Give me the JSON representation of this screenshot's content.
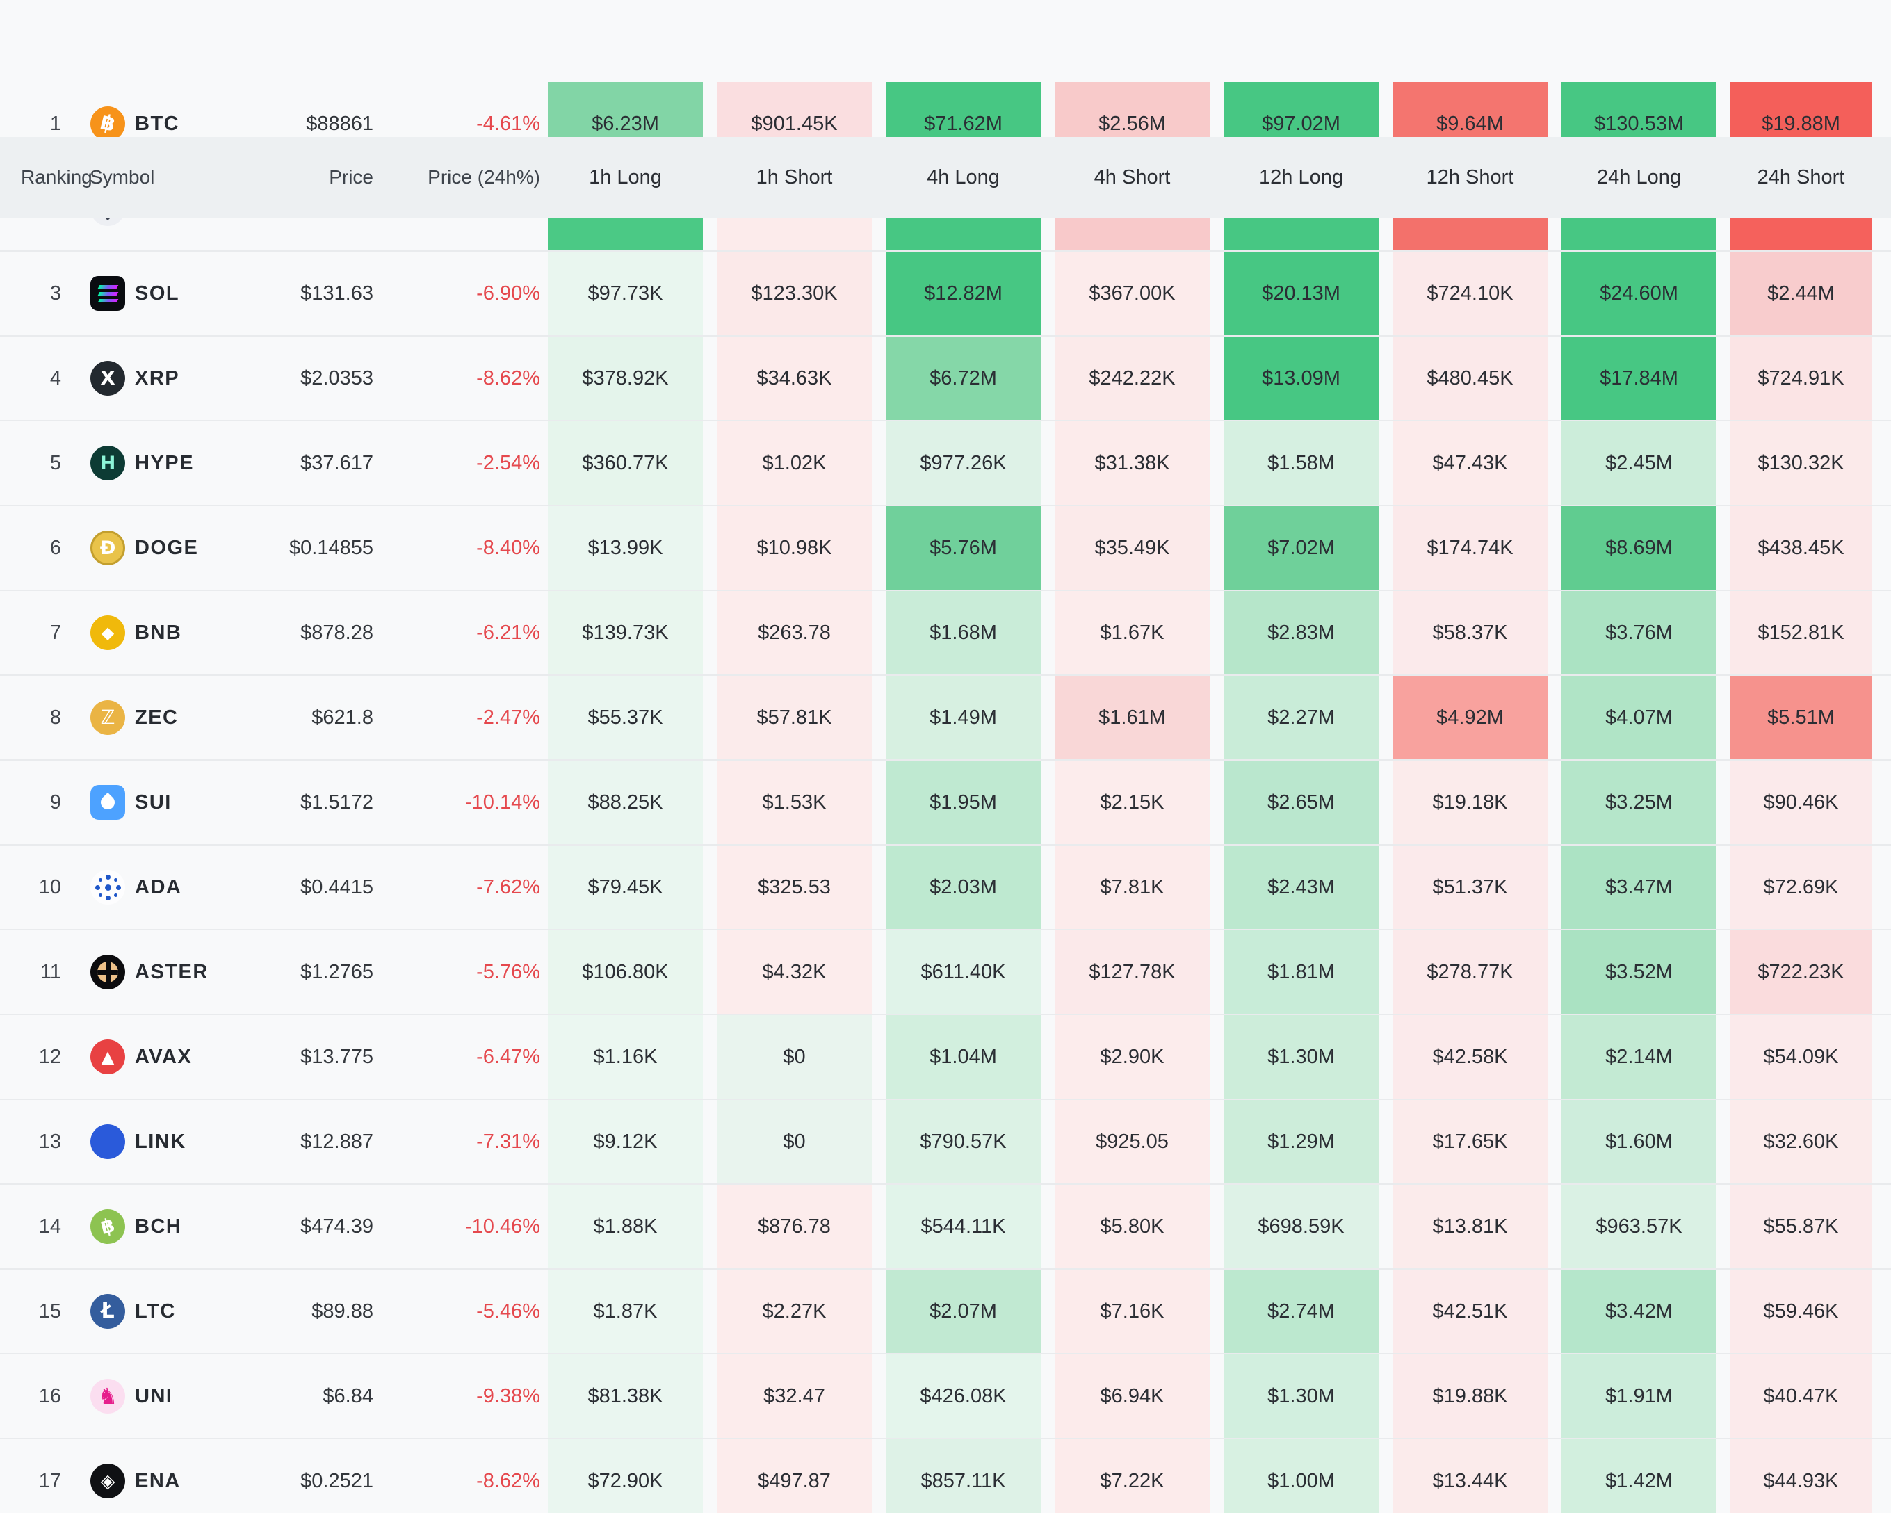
{
  "theme": {
    "page_bg": "#f8f9fa",
    "header_bg": "#edf0f2",
    "row_divider": "#e9ebed",
    "negative_text": "#e5484d",
    "strong_green": "#47c783",
    "strong_red": "#f45f5a"
  },
  "header": {
    "columns": [
      "Ranking",
      "Symbol",
      "Price",
      "Price (24h%)",
      "1h Long",
      "1h Short",
      "4h Long",
      "4h Short",
      "12h Long",
      "12h Short",
      "24h Long",
      "24h Short"
    ]
  },
  "rows": [
    {
      "ranking": "1",
      "symbol": "BTC",
      "icon": "btc",
      "price": "$88861",
      "change": "-4.61%",
      "cells": [
        {
          "text": "$6.23M",
          "bg": "#82d5a6"
        },
        {
          "text": "$901.45K",
          "bg": "#fadee0"
        },
        {
          "text": "$71.62M",
          "bg": "#47c783"
        },
        {
          "text": "$2.56M",
          "bg": "#f8caca"
        },
        {
          "text": "$97.02M",
          "bg": "#47c783"
        },
        {
          "text": "$9.64M",
          "bg": "#f4756f"
        },
        {
          "text": "$130.53M",
          "bg": "#47c783"
        },
        {
          "text": "$19.88M",
          "bg": "#f45f5a"
        }
      ]
    },
    {
      "ranking": "",
      "symbol": "",
      "icon": "eth",
      "price": "",
      "change": "",
      "cells": [
        {
          "text": "",
          "bg": "#4bc985"
        },
        {
          "text": "",
          "bg": "#fcebeb"
        },
        {
          "text": "",
          "bg": "#47c783"
        },
        {
          "text": "",
          "bg": "#f8c9ca"
        },
        {
          "text": "",
          "bg": "#47c783"
        },
        {
          "text": "",
          "bg": "#f3716b"
        },
        {
          "text": "",
          "bg": "#47c783"
        },
        {
          "text": "",
          "bg": "#f5615c"
        }
      ]
    },
    {
      "ranking": "3",
      "symbol": "SOL",
      "icon": "sol",
      "price": "$131.63",
      "change": "-6.90%",
      "cells": [
        {
          "text": "$97.73K",
          "bg": "#e9f6ef"
        },
        {
          "text": "$123.30K",
          "bg": "#fbe9e9"
        },
        {
          "text": "$12.82M",
          "bg": "#47c783"
        },
        {
          "text": "$367.00K",
          "bg": "#fcebeb"
        },
        {
          "text": "$20.13M",
          "bg": "#47c783"
        },
        {
          "text": "$724.10K",
          "bg": "#fbe9ea"
        },
        {
          "text": "$24.60M",
          "bg": "#47c783"
        },
        {
          "text": "$2.44M",
          "bg": "#f8cccd"
        }
      ]
    },
    {
      "ranking": "4",
      "symbol": "XRP",
      "icon": "xrp",
      "price": "$2.0353",
      "change": "-8.62%",
      "cells": [
        {
          "text": "$378.92K",
          "bg": "#e4f4eb"
        },
        {
          "text": "$34.63K",
          "bg": "#fcebeb"
        },
        {
          "text": "$6.72M",
          "bg": "#85d7a8"
        },
        {
          "text": "$242.22K",
          "bg": "#fbeaea"
        },
        {
          "text": "$13.09M",
          "bg": "#47c783"
        },
        {
          "text": "$480.45K",
          "bg": "#fbe9ea"
        },
        {
          "text": "$17.84M",
          "bg": "#47c783"
        },
        {
          "text": "$724.91K",
          "bg": "#fbe4e5"
        }
      ]
    },
    {
      "ranking": "5",
      "symbol": "HYPE",
      "icon": "hype",
      "price": "$37.617",
      "change": "-2.54%",
      "cells": [
        {
          "text": "$360.77K",
          "bg": "#e6f5ec"
        },
        {
          "text": "$1.02K",
          "bg": "#fcecec"
        },
        {
          "text": "$977.26K",
          "bg": "#def2e7"
        },
        {
          "text": "$31.38K",
          "bg": "#fcebeb"
        },
        {
          "text": "$1.58M",
          "bg": "#d6f0e1"
        },
        {
          "text": "$47.43K",
          "bg": "#fcebeb"
        },
        {
          "text": "$2.45M",
          "bg": "#ccedda"
        },
        {
          "text": "$130.32K",
          "bg": "#fbeaea"
        }
      ]
    },
    {
      "ranking": "6",
      "symbol": "DOGE",
      "icon": "doge",
      "price": "$0.14855",
      "change": "-8.40%",
      "cells": [
        {
          "text": "$13.99K",
          "bg": "#eaf6f0"
        },
        {
          "text": "$10.98K",
          "bg": "#fcebeb"
        },
        {
          "text": "$5.76M",
          "bg": "#70d09b"
        },
        {
          "text": "$35.49K",
          "bg": "#fbeaea"
        },
        {
          "text": "$7.02M",
          "bg": "#6fd09a"
        },
        {
          "text": "$174.74K",
          "bg": "#fbe9ea"
        },
        {
          "text": "$8.69M",
          "bg": "#60cc90"
        },
        {
          "text": "$438.45K",
          "bg": "#fbe8e9"
        }
      ]
    },
    {
      "ranking": "7",
      "symbol": "BNB",
      "icon": "bnb",
      "price": "$878.28",
      "change": "-6.21%",
      "cells": [
        {
          "text": "$139.73K",
          "bg": "#e9f6ee"
        },
        {
          "text": "$263.78",
          "bg": "#fcecec"
        },
        {
          "text": "$1.68M",
          "bg": "#c9ecd8"
        },
        {
          "text": "$1.67K",
          "bg": "#fcecec"
        },
        {
          "text": "$2.83M",
          "bg": "#b6e6ca"
        },
        {
          "text": "$58.37K",
          "bg": "#fbeaeb"
        },
        {
          "text": "$3.76M",
          "bg": "#abe3c3"
        },
        {
          "text": "$152.81K",
          "bg": "#fbe9ea"
        }
      ]
    },
    {
      "ranking": "8",
      "symbol": "ZEC",
      "icon": "zec",
      "price": "$621.8",
      "change": "-2.47%",
      "cells": [
        {
          "text": "$55.37K",
          "bg": "#eaf6f0"
        },
        {
          "text": "$57.81K",
          "bg": "#fbebeb"
        },
        {
          "text": "$1.49M",
          "bg": "#d7f0e1"
        },
        {
          "text": "$1.61M",
          "bg": "#f9d7d7"
        },
        {
          "text": "$2.27M",
          "bg": "#c9ecd8"
        },
        {
          "text": "$4.92M",
          "bg": "#f8a29e"
        },
        {
          "text": "$4.07M",
          "bg": "#b0e4c6"
        },
        {
          "text": "$5.51M",
          "bg": "#f6928d"
        }
      ]
    },
    {
      "ranking": "9",
      "symbol": "SUI",
      "icon": "sui",
      "price": "$1.5172",
      "change": "-10.14%",
      "cells": [
        {
          "text": "$88.25K",
          "bg": "#eaf6f0"
        },
        {
          "text": "$1.53K",
          "bg": "#fcecec"
        },
        {
          "text": "$1.95M",
          "bg": "#bfe9d1"
        },
        {
          "text": "$2.15K",
          "bg": "#fcecec"
        },
        {
          "text": "$2.65M",
          "bg": "#bae7ce"
        },
        {
          "text": "$19.18K",
          "bg": "#fbebeb"
        },
        {
          "text": "$3.25M",
          "bg": "#b5e6ca"
        },
        {
          "text": "$90.46K",
          "bg": "#fbeaeb"
        }
      ]
    },
    {
      "ranking": "10",
      "symbol": "ADA",
      "icon": "ada",
      "price": "$0.4415",
      "change": "-7.62%",
      "cells": [
        {
          "text": "$79.45K",
          "bg": "#eaf6f0"
        },
        {
          "text": "$325.53",
          "bg": "#fcecec"
        },
        {
          "text": "$2.03M",
          "bg": "#bee9d0"
        },
        {
          "text": "$7.81K",
          "bg": "#fcebeb"
        },
        {
          "text": "$2.43M",
          "bg": "#bce8cf"
        },
        {
          "text": "$51.37K",
          "bg": "#fbeaeb"
        },
        {
          "text": "$3.47M",
          "bg": "#ace3c4"
        },
        {
          "text": "$72.69K",
          "bg": "#fbeaeb"
        }
      ]
    },
    {
      "ranking": "11",
      "symbol": "ASTER",
      "icon": "aster",
      "price": "$1.2765",
      "change": "-5.76%",
      "cells": [
        {
          "text": "$106.80K",
          "bg": "#e9f6ee"
        },
        {
          "text": "$4.32K",
          "bg": "#fcecec"
        },
        {
          "text": "$611.40K",
          "bg": "#e0f3e9"
        },
        {
          "text": "$127.78K",
          "bg": "#fbe9ea"
        },
        {
          "text": "$1.81M",
          "bg": "#c8ecd8"
        },
        {
          "text": "$278.77K",
          "bg": "#fbe9ea"
        },
        {
          "text": "$3.52M",
          "bg": "#aae2c2"
        },
        {
          "text": "$722.23K",
          "bg": "#fadcdd"
        }
      ]
    },
    {
      "ranking": "12",
      "symbol": "AVAX",
      "icon": "avax",
      "price": "$13.775",
      "change": "-6.47%",
      "cells": [
        {
          "text": "$1.16K",
          "bg": "#ebf7f1"
        },
        {
          "text": "$0",
          "bg": "#e9f4ee"
        },
        {
          "text": "$1.04M",
          "bg": "#d2efde"
        },
        {
          "text": "$2.90K",
          "bg": "#fcecec"
        },
        {
          "text": "$1.30M",
          "bg": "#cdedda"
        },
        {
          "text": "$42.58K",
          "bg": "#fbeaeb"
        },
        {
          "text": "$2.14M",
          "bg": "#c3ead3"
        },
        {
          "text": "$54.09K",
          "bg": "#fbeaeb"
        }
      ]
    },
    {
      "ranking": "13",
      "symbol": "LINK",
      "icon": "link",
      "price": "$12.887",
      "change": "-7.31%",
      "cells": [
        {
          "text": "$9.12K",
          "bg": "#ebf7f1"
        },
        {
          "text": "$0",
          "bg": "#e9f4ee"
        },
        {
          "text": "$790.57K",
          "bg": "#dcf2e5"
        },
        {
          "text": "$925.05",
          "bg": "#fcecec"
        },
        {
          "text": "$1.29M",
          "bg": "#cdedda"
        },
        {
          "text": "$17.65K",
          "bg": "#fbebeb"
        },
        {
          "text": "$1.60M",
          "bg": "#ceeddc"
        },
        {
          "text": "$32.60K",
          "bg": "#fbebeb"
        }
      ]
    },
    {
      "ranking": "14",
      "symbol": "BCH",
      "icon": "bch",
      "price": "$474.39",
      "change": "-10.46%",
      "cells": [
        {
          "text": "$1.88K",
          "bg": "#ebf7f1"
        },
        {
          "text": "$876.78",
          "bg": "#fcecec"
        },
        {
          "text": "$544.11K",
          "bg": "#e1f4ea"
        },
        {
          "text": "$5.80K",
          "bg": "#fcecec"
        },
        {
          "text": "$698.59K",
          "bg": "#def2e7"
        },
        {
          "text": "$13.81K",
          "bg": "#fbebeb"
        },
        {
          "text": "$963.57K",
          "bg": "#daf1e4"
        },
        {
          "text": "$55.87K",
          "bg": "#fbeaeb"
        }
      ]
    },
    {
      "ranking": "15",
      "symbol": "LTC",
      "icon": "ltc",
      "price": "$89.88",
      "change": "-5.46%",
      "cells": [
        {
          "text": "$1.87K",
          "bg": "#ebf7f1"
        },
        {
          "text": "$2.27K",
          "bg": "#fcecec"
        },
        {
          "text": "$2.07M",
          "bg": "#c1e9d2"
        },
        {
          "text": "$7.16K",
          "bg": "#fcebeb"
        },
        {
          "text": "$2.74M",
          "bg": "#bce8cf"
        },
        {
          "text": "$42.51K",
          "bg": "#fbeaeb"
        },
        {
          "text": "$3.42M",
          "bg": "#b5e6cb"
        },
        {
          "text": "$59.46K",
          "bg": "#fbeaeb"
        }
      ]
    },
    {
      "ranking": "16",
      "symbol": "UNI",
      "icon": "uni",
      "price": "$6.84",
      "change": "-9.38%",
      "cells": [
        {
          "text": "$81.38K",
          "bg": "#eaf6f0"
        },
        {
          "text": "$32.47",
          "bg": "#fcecec"
        },
        {
          "text": "$426.08K",
          "bg": "#e4f5ec"
        },
        {
          "text": "$6.94K",
          "bg": "#fcebeb"
        },
        {
          "text": "$1.30M",
          "bg": "#d2efdf"
        },
        {
          "text": "$19.88K",
          "bg": "#fbeaeb"
        },
        {
          "text": "$1.91M",
          "bg": "#cceddb"
        },
        {
          "text": "$40.47K",
          "bg": "#fbeaeb"
        }
      ]
    },
    {
      "ranking": "17",
      "symbol": "ENA",
      "icon": "ena",
      "price": "$0.2521",
      "change": "-8.62%",
      "cells": [
        {
          "text": "$72.90K",
          "bg": "#eaf6f0"
        },
        {
          "text": "$497.87",
          "bg": "#fcecec"
        },
        {
          "text": "$857.11K",
          "bg": "#def2e7"
        },
        {
          "text": "$7.22K",
          "bg": "#fcebeb"
        },
        {
          "text": "$1.00M",
          "bg": "#d8f1e2"
        },
        {
          "text": "$13.44K",
          "bg": "#fbebeb"
        },
        {
          "text": "$1.42M",
          "bg": "#d2efde"
        },
        {
          "text": "$44.93K",
          "bg": "#fbeaeb"
        }
      ]
    }
  ]
}
